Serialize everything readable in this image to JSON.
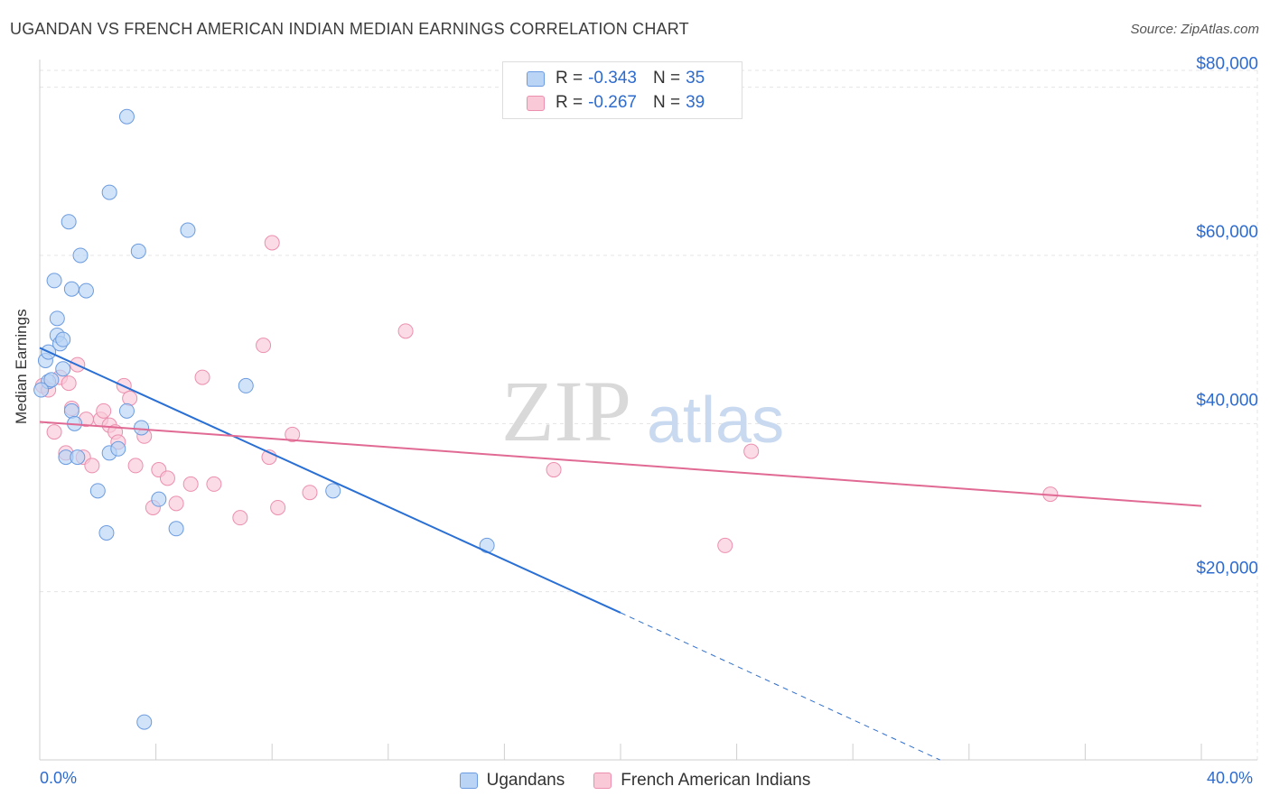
{
  "title": "UGANDAN VS FRENCH AMERICAN INDIAN MEDIAN EARNINGS CORRELATION CHART",
  "source": "Source: ZipAtlas.com",
  "watermark": {
    "zip": "ZIP",
    "atlas": "atlas"
  },
  "legend": {
    "series1": {
      "r_label": "R =",
      "r_value": "-0.343",
      "n_label": "N =",
      "n_value": "35"
    },
    "series2": {
      "r_label": "R =",
      "r_value": "-0.267",
      "n_label": "N =",
      "n_value": "39"
    }
  },
  "colors": {
    "blue_fill": "#b9d4f5",
    "blue_stroke": "#6b9be0",
    "blue_line": "#2a6fd4",
    "pink_fill": "#f9c9d8",
    "pink_stroke": "#ec8fae",
    "pink_line": "#e06a93",
    "axis_label": "#2d6bcf"
  },
  "chart_data": {
    "type": "scatter",
    "title": "UGANDAN VS FRENCH AMERICAN INDIAN MEDIAN EARNINGS CORRELATION CHART",
    "xlabel": "",
    "ylabel": "Median Earnings",
    "xlim": [
      0,
      40
    ],
    "ylim": [
      0,
      82000
    ],
    "x_tick_labels": [
      "0.0%",
      "40.0%"
    ],
    "y_tick_labels": [
      "$20,000",
      "$40,000",
      "$60,000",
      "$80,000"
    ],
    "y_ticks": [
      20000,
      40000,
      60000,
      80000
    ],
    "grid": true,
    "series": [
      {
        "name": "Ugandans",
        "color": "#6b9be0",
        "points": [
          [
            0.2,
            47500
          ],
          [
            0.3,
            48500
          ],
          [
            0.3,
            45000
          ],
          [
            0.4,
            45200
          ],
          [
            0.5,
            57000
          ],
          [
            0.6,
            50500
          ],
          [
            0.6,
            52500
          ],
          [
            0.7,
            49500
          ],
          [
            0.8,
            50000
          ],
          [
            0.8,
            46500
          ],
          [
            0.9,
            36000
          ],
          [
            1.0,
            64000
          ],
          [
            1.1,
            41500
          ],
          [
            1.1,
            56000
          ],
          [
            1.2,
            40000
          ],
          [
            1.3,
            36000
          ],
          [
            1.4,
            60000
          ],
          [
            1.6,
            55800
          ],
          [
            2.0,
            32000
          ],
          [
            2.3,
            27000
          ],
          [
            2.4,
            36500
          ],
          [
            2.4,
            67500
          ],
          [
            2.7,
            37000
          ],
          [
            3.0,
            41500
          ],
          [
            3.0,
            76500
          ],
          [
            3.4,
            60500
          ],
          [
            3.5,
            39500
          ],
          [
            3.6,
            4500
          ],
          [
            4.1,
            31000
          ],
          [
            4.7,
            27500
          ],
          [
            5.1,
            63000
          ],
          [
            7.1,
            44500
          ],
          [
            10.1,
            32000
          ],
          [
            15.4,
            25500
          ],
          [
            0.05,
            44000
          ]
        ]
      },
      {
        "name": "French American Indians",
        "color": "#ec8fae",
        "points": [
          [
            0.1,
            44500
          ],
          [
            0.5,
            39000
          ],
          [
            0.7,
            45500
          ],
          [
            0.9,
            36500
          ],
          [
            1.0,
            44800
          ],
          [
            1.1,
            41800
          ],
          [
            1.3,
            47000
          ],
          [
            1.5,
            36000
          ],
          [
            1.6,
            40500
          ],
          [
            1.8,
            35000
          ],
          [
            2.1,
            40500
          ],
          [
            2.2,
            41500
          ],
          [
            2.4,
            39800
          ],
          [
            2.6,
            39000
          ],
          [
            2.7,
            37800
          ],
          [
            2.9,
            44500
          ],
          [
            3.1,
            43000
          ],
          [
            3.3,
            35000
          ],
          [
            3.6,
            38500
          ],
          [
            3.9,
            30000
          ],
          [
            4.1,
            34500
          ],
          [
            4.4,
            33500
          ],
          [
            4.7,
            30500
          ],
          [
            5.2,
            32800
          ],
          [
            5.6,
            45500
          ],
          [
            6.0,
            32800
          ],
          [
            6.9,
            28800
          ],
          [
            7.7,
            49300
          ],
          [
            7.9,
            36000
          ],
          [
            8.0,
            61500
          ],
          [
            8.2,
            30000
          ],
          [
            8.7,
            38700
          ],
          [
            9.3,
            31800
          ],
          [
            12.6,
            51000
          ],
          [
            17.7,
            34500
          ],
          [
            23.6,
            25500
          ],
          [
            24.5,
            36700
          ],
          [
            34.8,
            31600
          ],
          [
            0.3,
            44000
          ]
        ]
      }
    ],
    "trendlines": [
      {
        "series": "Ugandans",
        "x0": 0,
        "y0": 49000,
        "x1": 20,
        "y1": 17500,
        "dashed_to_x": 31,
        "dashed_to_y": 0
      },
      {
        "series": "French American Indians",
        "x0": 0,
        "y0": 40200,
        "x1": 40,
        "y1": 30200
      }
    ]
  }
}
